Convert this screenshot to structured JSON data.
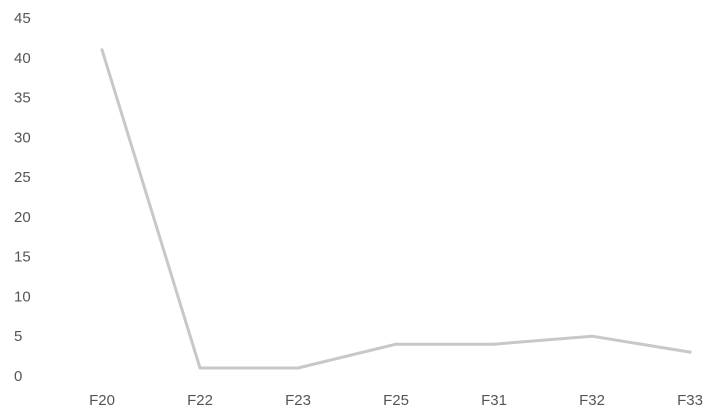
{
  "chart_data": {
    "type": "line",
    "categories": [
      "F20",
      "F22",
      "F23",
      "F25",
      "F31",
      "F32",
      "F33"
    ],
    "series": [
      {
        "values": [
          41,
          1,
          1,
          4,
          4,
          5,
          3
        ]
      }
    ],
    "ylim": [
      0,
      45
    ],
    "yticks": [
      "0",
      "5",
      "10",
      "15",
      "20",
      "25",
      "30",
      "35",
      "40",
      "45"
    ],
    "grid": false,
    "legend": "none",
    "colors": {
      "line": "#c8c8c8",
      "tick_text": "#555555"
    }
  }
}
